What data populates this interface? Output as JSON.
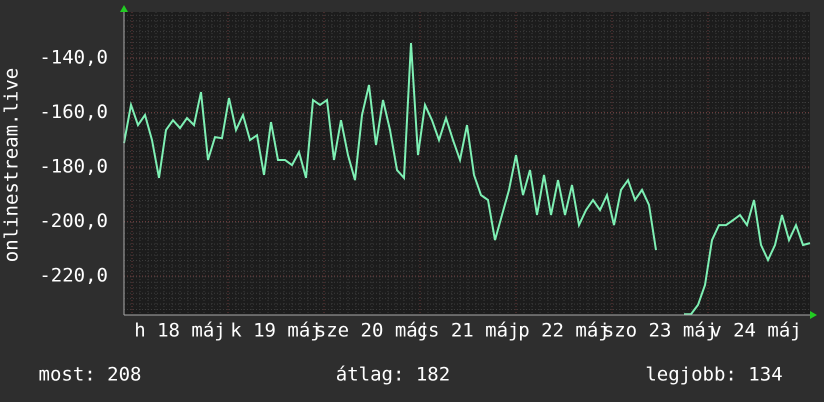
{
  "chart_data": {
    "type": "line",
    "y_label": "onlinestream.live",
    "ylim": [
      -234.3,
      -123.1
    ],
    "yticks": [
      {
        "value": -140,
        "label": "-140,0"
      },
      {
        "value": -160,
        "label": "-160,0"
      },
      {
        "value": -180,
        "label": "-180,0"
      },
      {
        "value": -200,
        "label": "-200,0"
      },
      {
        "value": -220,
        "label": "-220,0"
      }
    ],
    "x_labels": [
      "h 18 máj",
      "k 19 máj",
      "sze 20 máj",
      "cs 21 máj",
      "p 22 máj",
      "szo 23 máj",
      "v 24 máj"
    ],
    "grid": true,
    "series": [
      {
        "color": "#7ef0b4",
        "values": [
          -171.2,
          -157.2,
          -164.6,
          -160.9,
          -170.1,
          -184.0,
          -166.4,
          -162.8,
          -165.7,
          -162.0,
          -164.6,
          -152.5,
          -177.4,
          -169.0,
          -169.4,
          -154.7,
          -166.4,
          -160.9,
          -170.1,
          -168.3,
          -182.9,
          -163.5,
          -177.4,
          -177.4,
          -179.3,
          -174.5,
          -184.0,
          -155.4,
          -157.2,
          -155.4,
          -177.4,
          -162.8,
          -175.6,
          -184.8,
          -160.9,
          -149.9,
          -171.9,
          -155.4,
          -166.4,
          -181.1,
          -184.0,
          -134.5,
          -175.6,
          -157.2,
          -162.8,
          -170.1,
          -162.0,
          -170.1,
          -177.4,
          -164.6,
          -182.9,
          -190.3,
          -192.1,
          -206.8,
          -197.6,
          -188.4,
          -175.6,
          -190.3,
          -181.1,
          -197.6,
          -182.9,
          -197.6,
          -184.8,
          -197.6,
          -186.6,
          -201.3,
          -195.8,
          -192.1,
          -195.8,
          -190.3,
          -201.3,
          -188.4,
          -184.8,
          -192.1,
          -188.4,
          -193.9,
          -210.5,
          null,
          null,
          null,
          -234.0,
          -234.0,
          -230.6,
          -223.3,
          -206.8,
          -201.3,
          -201.3,
          -199.5,
          -197.6,
          -201.3,
          -192.1,
          -208.6,
          -214.1,
          -208.6,
          -197.6,
          -206.8,
          -201.3,
          -208.6,
          -207.9
        ]
      }
    ],
    "stats": [
      "most: 208",
      "átlag: 182",
      "legjobb: 134"
    ]
  }
}
